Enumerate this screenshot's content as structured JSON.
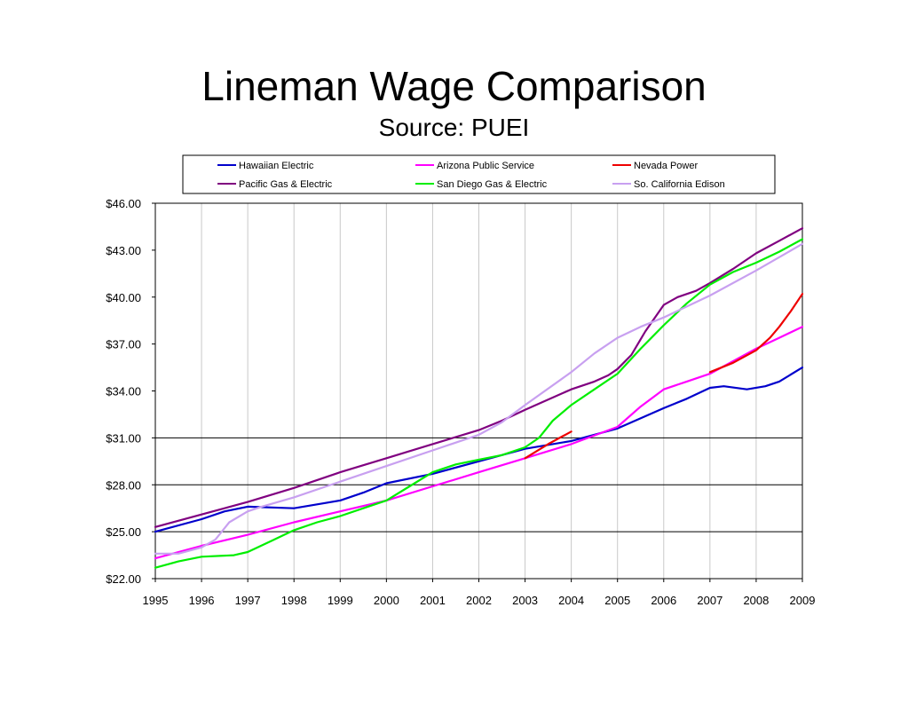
{
  "chart_data": {
    "type": "line",
    "title": "Lineman Wage Comparison",
    "subtitle": "Source:  PUEI",
    "xlabel": "",
    "ylabel": "",
    "x": [
      1995,
      1996,
      1997,
      1998,
      1999,
      2000,
      2001,
      2002,
      2003,
      2004,
      2005,
      2006,
      2007,
      2008,
      2009
    ],
    "xlim": [
      1995,
      2009
    ],
    "ylim": [
      22,
      46
    ],
    "yticks": [
      22,
      25,
      28,
      31,
      34,
      37,
      40,
      43,
      46
    ],
    "ytick_labels": [
      "$22.00",
      "$25.00",
      "$28.00",
      "$31.00",
      "$34.00",
      "$37.00",
      "$40.00",
      "$43.00",
      "$46.00"
    ],
    "xtick_labels": [
      "1995",
      "1996",
      "1997",
      "1998",
      "1999",
      "2000",
      "2001",
      "2002",
      "2003",
      "2004",
      "2005",
      "2006",
      "2007",
      "2008",
      "2009"
    ],
    "grid": {
      "horizontal_below": 31,
      "vertical": true
    },
    "legend_position": "top",
    "series": [
      {
        "name": "Hawaiian Electric",
        "color": "#0000cc",
        "points": [
          [
            1995,
            25.0
          ],
          [
            1996,
            25.8
          ],
          [
            1996.5,
            26.3
          ],
          [
            1997,
            26.6
          ],
          [
            1998,
            26.5
          ],
          [
            1998.6,
            26.8
          ],
          [
            1999,
            27.0
          ],
          [
            1999.5,
            27.5
          ],
          [
            2000,
            28.1
          ],
          [
            2001,
            28.7
          ],
          [
            2002,
            29.5
          ],
          [
            2003,
            30.3
          ],
          [
            2004,
            30.8
          ],
          [
            2005,
            31.6
          ],
          [
            2006,
            32.9
          ],
          [
            2006.5,
            33.5
          ],
          [
            2007,
            34.2
          ],
          [
            2007.3,
            34.3
          ],
          [
            2007.8,
            34.1
          ],
          [
            2008.2,
            34.3
          ],
          [
            2008.5,
            34.6
          ],
          [
            2009,
            35.5
          ]
        ]
      },
      {
        "name": "Arizona Public Service",
        "color": "#ff00ff",
        "points": [
          [
            1995,
            23.3
          ],
          [
            1996,
            24.1
          ],
          [
            1997,
            24.8
          ],
          [
            1998,
            25.6
          ],
          [
            1999,
            26.3
          ],
          [
            2000,
            27.0
          ],
          [
            2001,
            27.9
          ],
          [
            2002,
            28.8
          ],
          [
            2003,
            29.7
          ],
          [
            2004,
            30.6
          ],
          [
            2005,
            31.7
          ],
          [
            2005.5,
            33.0
          ],
          [
            2006,
            34.1
          ],
          [
            2006.5,
            34.6
          ],
          [
            2007,
            35.1
          ],
          [
            2007.5,
            35.9
          ],
          [
            2008,
            36.7
          ],
          [
            2008.5,
            37.4
          ],
          [
            2009,
            38.1
          ]
        ]
      },
      {
        "name": "Nevada Power",
        "color": "#ee0000",
        "points": [
          [
            2003,
            29.7
          ],
          [
            2003.5,
            30.6
          ],
          [
            2004,
            31.4
          ],
          [
            2004,
            0,
            "break"
          ],
          [
            2007,
            35.2
          ],
          [
            2007.5,
            35.8
          ],
          [
            2008,
            36.6
          ],
          [
            2008.3,
            37.4
          ],
          [
            2008.5,
            38.1
          ],
          [
            2008.75,
            39.1
          ],
          [
            2009,
            40.2
          ]
        ]
      },
      {
        "name": "Pacific Gas & Electric",
        "color": "#800080",
        "points": [
          [
            1995,
            25.3
          ],
          [
            1996,
            26.1
          ],
          [
            1997,
            26.9
          ],
          [
            1998,
            27.8
          ],
          [
            1999,
            28.8
          ],
          [
            2000,
            29.7
          ],
          [
            2001,
            30.6
          ],
          [
            2002,
            31.5
          ],
          [
            2002.5,
            32.1
          ],
          [
            2003,
            32.8
          ],
          [
            2004,
            34.1
          ],
          [
            2004.5,
            34.6
          ],
          [
            2004.8,
            35.0
          ],
          [
            2005,
            35.4
          ],
          [
            2005.3,
            36.3
          ],
          [
            2005.6,
            37.8
          ],
          [
            2006,
            39.5
          ],
          [
            2006.3,
            40.0
          ],
          [
            2006.7,
            40.4
          ],
          [
            2007,
            40.9
          ],
          [
            2007.5,
            41.8
          ],
          [
            2008,
            42.8
          ],
          [
            2008.5,
            43.6
          ],
          [
            2009,
            44.4
          ]
        ]
      },
      {
        "name": "San Diego Gas & Electric",
        "color": "#00ee00",
        "points": [
          [
            1995,
            22.7
          ],
          [
            1995.5,
            23.1
          ],
          [
            1996,
            23.4
          ],
          [
            1996.7,
            23.5
          ],
          [
            1997,
            23.7
          ],
          [
            1997.5,
            24.4
          ],
          [
            1998,
            25.1
          ],
          [
            1998.5,
            25.6
          ],
          [
            1999,
            26.0
          ],
          [
            1999.5,
            26.5
          ],
          [
            2000,
            27.0
          ],
          [
            2000.5,
            27.9
          ],
          [
            2001,
            28.8
          ],
          [
            2001.5,
            29.3
          ],
          [
            2002,
            29.6
          ],
          [
            2002.5,
            29.9
          ],
          [
            2003,
            30.4
          ],
          [
            2003.3,
            31.0
          ],
          [
            2003.6,
            32.1
          ],
          [
            2004,
            33.1
          ],
          [
            2004.5,
            34.1
          ],
          [
            2005,
            35.1
          ],
          [
            2005.5,
            36.7
          ],
          [
            2006,
            38.2
          ],
          [
            2006.5,
            39.6
          ],
          [
            2007,
            40.8
          ],
          [
            2007.5,
            41.6
          ],
          [
            2008,
            42.2
          ],
          [
            2008.5,
            42.9
          ],
          [
            2009,
            43.7
          ]
        ]
      },
      {
        "name": "So. California Edison",
        "color": "#c8a0f0",
        "points": [
          [
            1995,
            23.6
          ],
          [
            1995.5,
            23.6
          ],
          [
            1996,
            24.0
          ],
          [
            1996.3,
            24.5
          ],
          [
            1996.6,
            25.6
          ],
          [
            1997,
            26.3
          ],
          [
            1997.3,
            26.6
          ],
          [
            1998,
            27.2
          ],
          [
            1999,
            28.2
          ],
          [
            2000,
            29.2
          ],
          [
            2001,
            30.2
          ],
          [
            2002,
            31.2
          ],
          [
            2002.5,
            32.0
          ],
          [
            2003,
            33.1
          ],
          [
            2004,
            35.2
          ],
          [
            2004.5,
            36.4
          ],
          [
            2005,
            37.4
          ],
          [
            2005.5,
            38.1
          ],
          [
            2006,
            38.7
          ],
          [
            2007,
            40.1
          ],
          [
            2008,
            41.7
          ],
          [
            2009,
            43.4
          ]
        ]
      }
    ]
  }
}
